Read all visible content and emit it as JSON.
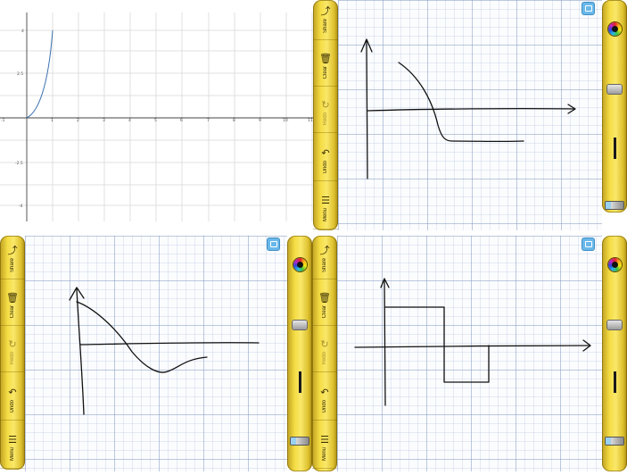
{
  "plot": {
    "x_ticks": [
      "-1",
      "1",
      "2",
      "3",
      "4",
      "5",
      "6",
      "7",
      "8",
      "9",
      "10",
      "11"
    ],
    "y_ticks": [
      "4",
      "2.5",
      "-2.5",
      "-4"
    ]
  },
  "toolbar_left": {
    "items": [
      {
        "label": "Share",
        "icon": "share-icon",
        "enabled": true
      },
      {
        "label": "Clear",
        "icon": "trash-icon",
        "enabled": true
      },
      {
        "label": "Redo",
        "icon": "redo-icon",
        "enabled": false
      },
      {
        "label": "Undo",
        "icon": "undo-icon",
        "enabled": true
      },
      {
        "label": "Menu",
        "icon": "menu-icon",
        "enabled": true
      }
    ]
  },
  "tools": [
    "color-wheel-icon",
    "eraser-icon",
    "pen-width-icon",
    "pencil-icon"
  ],
  "colors": {
    "toolbar": "#f2d83c",
    "grid": "#7891b9",
    "curve": "#3a6fb0",
    "ink": "#111111",
    "note_icon": "#6ab8ea"
  }
}
